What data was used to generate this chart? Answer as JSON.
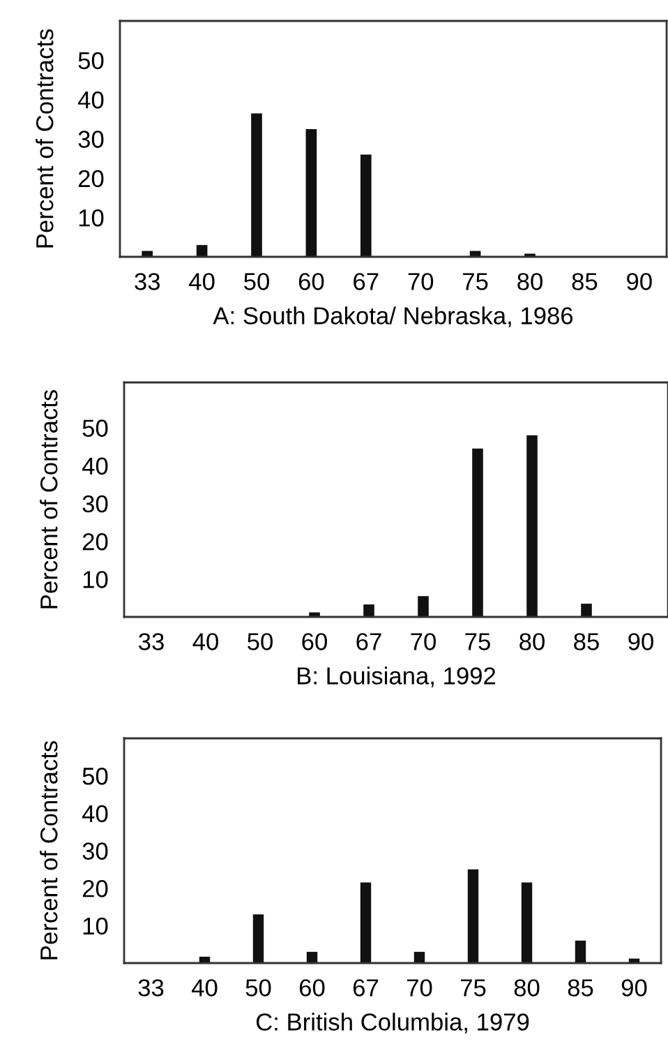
{
  "chart_data": [
    {
      "type": "bar",
      "xlabel": "A: South Dakota/ Nebraska, 1986",
      "ylabel": "Percent of Contracts",
      "categories": [
        "33",
        "40",
        "50",
        "60",
        "67",
        "70",
        "75",
        "80",
        "85",
        "90"
      ],
      "values": [
        1.5,
        3,
        36.5,
        32.5,
        26,
        null,
        1.5,
        0.8,
        null,
        null
      ],
      "color": "#111111",
      "ylim": [
        0,
        60
      ],
      "yticks": [
        10,
        20,
        30,
        40,
        50
      ],
      "grid": false,
      "legend": false
    },
    {
      "type": "bar",
      "xlabel": "B: Louisiana, 1992",
      "ylabel": "Percent of Contracts",
      "categories": [
        "33",
        "40",
        "50",
        "60",
        "67",
        "70",
        "75",
        "80",
        "85",
        "90"
      ],
      "values": [
        null,
        null,
        null,
        1.2,
        3.3,
        5.5,
        44.5,
        48,
        3.5,
        null
      ],
      "color": "#111111",
      "ylim": [
        0,
        62
      ],
      "yticks": [
        10,
        20,
        30,
        40,
        50
      ],
      "grid": false,
      "legend": false
    },
    {
      "type": "bar",
      "xlabel": "C: British Columbia, 1979",
      "ylabel": "Percent of Contracts",
      "categories": [
        "33",
        "40",
        "50",
        "60",
        "67",
        "70",
        "75",
        "80",
        "85",
        "90"
      ],
      "values": [
        null,
        1.7,
        13,
        3,
        21.5,
        3,
        25,
        21.5,
        6,
        1.2
      ],
      "color": "#111111",
      "ylim": [
        0,
        60
      ],
      "yticks": [
        10,
        20,
        30,
        40,
        50
      ],
      "grid": false,
      "legend": false
    }
  ]
}
